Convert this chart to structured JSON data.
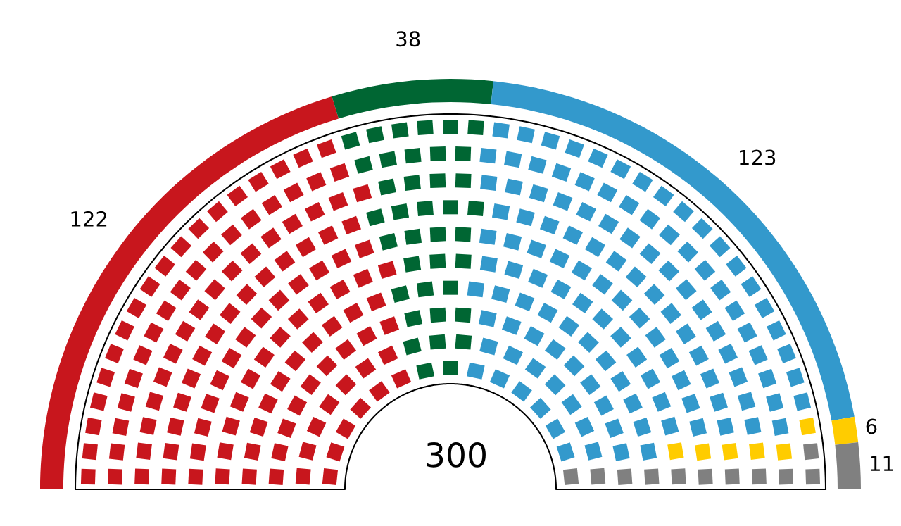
{
  "chart_data": {
    "type": "donut",
    "categories": [
      null,
      null,
      null,
      null,
      null
    ],
    "values": [
      122,
      38,
      123,
      6,
      11
    ],
    "colors": [
      "#c8161d",
      "#006633",
      "#3399cc",
      "#ffcc00",
      "#808080"
    ],
    "data_labels": true,
    "annotations": [
      "300"
    ]
  }
}
